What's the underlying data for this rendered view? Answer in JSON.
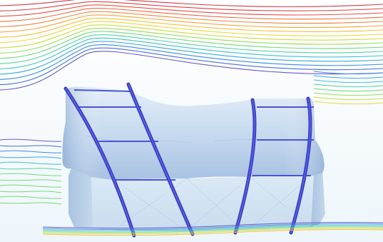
{
  "scene": {
    "subject": "membrane-structure-wind-streamlines",
    "colors": {
      "background_tint": "#eaf4f9",
      "membrane_light": "#dde9f5",
      "membrane_mid": "#b6cde6",
      "membrane_dark": "#8fafd6",
      "wall_face": "#cfe1f0",
      "wall_side": "#b3cce4",
      "arch": "#3a3fc8",
      "arch_dark": "#2a2fa5",
      "cable": "#4a55d0",
      "ground_edge": "#7ab0ea"
    },
    "streamline_palette": [
      "#6a5ac4",
      "#4d6fd8",
      "#3d8ee0",
      "#3aa9d8",
      "#40c2c6",
      "#53d0a4",
      "#74d878",
      "#9ddc55",
      "#c8de3e",
      "#eed83a",
      "#f6c13a",
      "#f6a33a",
      "#f3853c",
      "#ee6940",
      "#e35343",
      "#d84346",
      "#cc3a4a"
    ]
  }
}
